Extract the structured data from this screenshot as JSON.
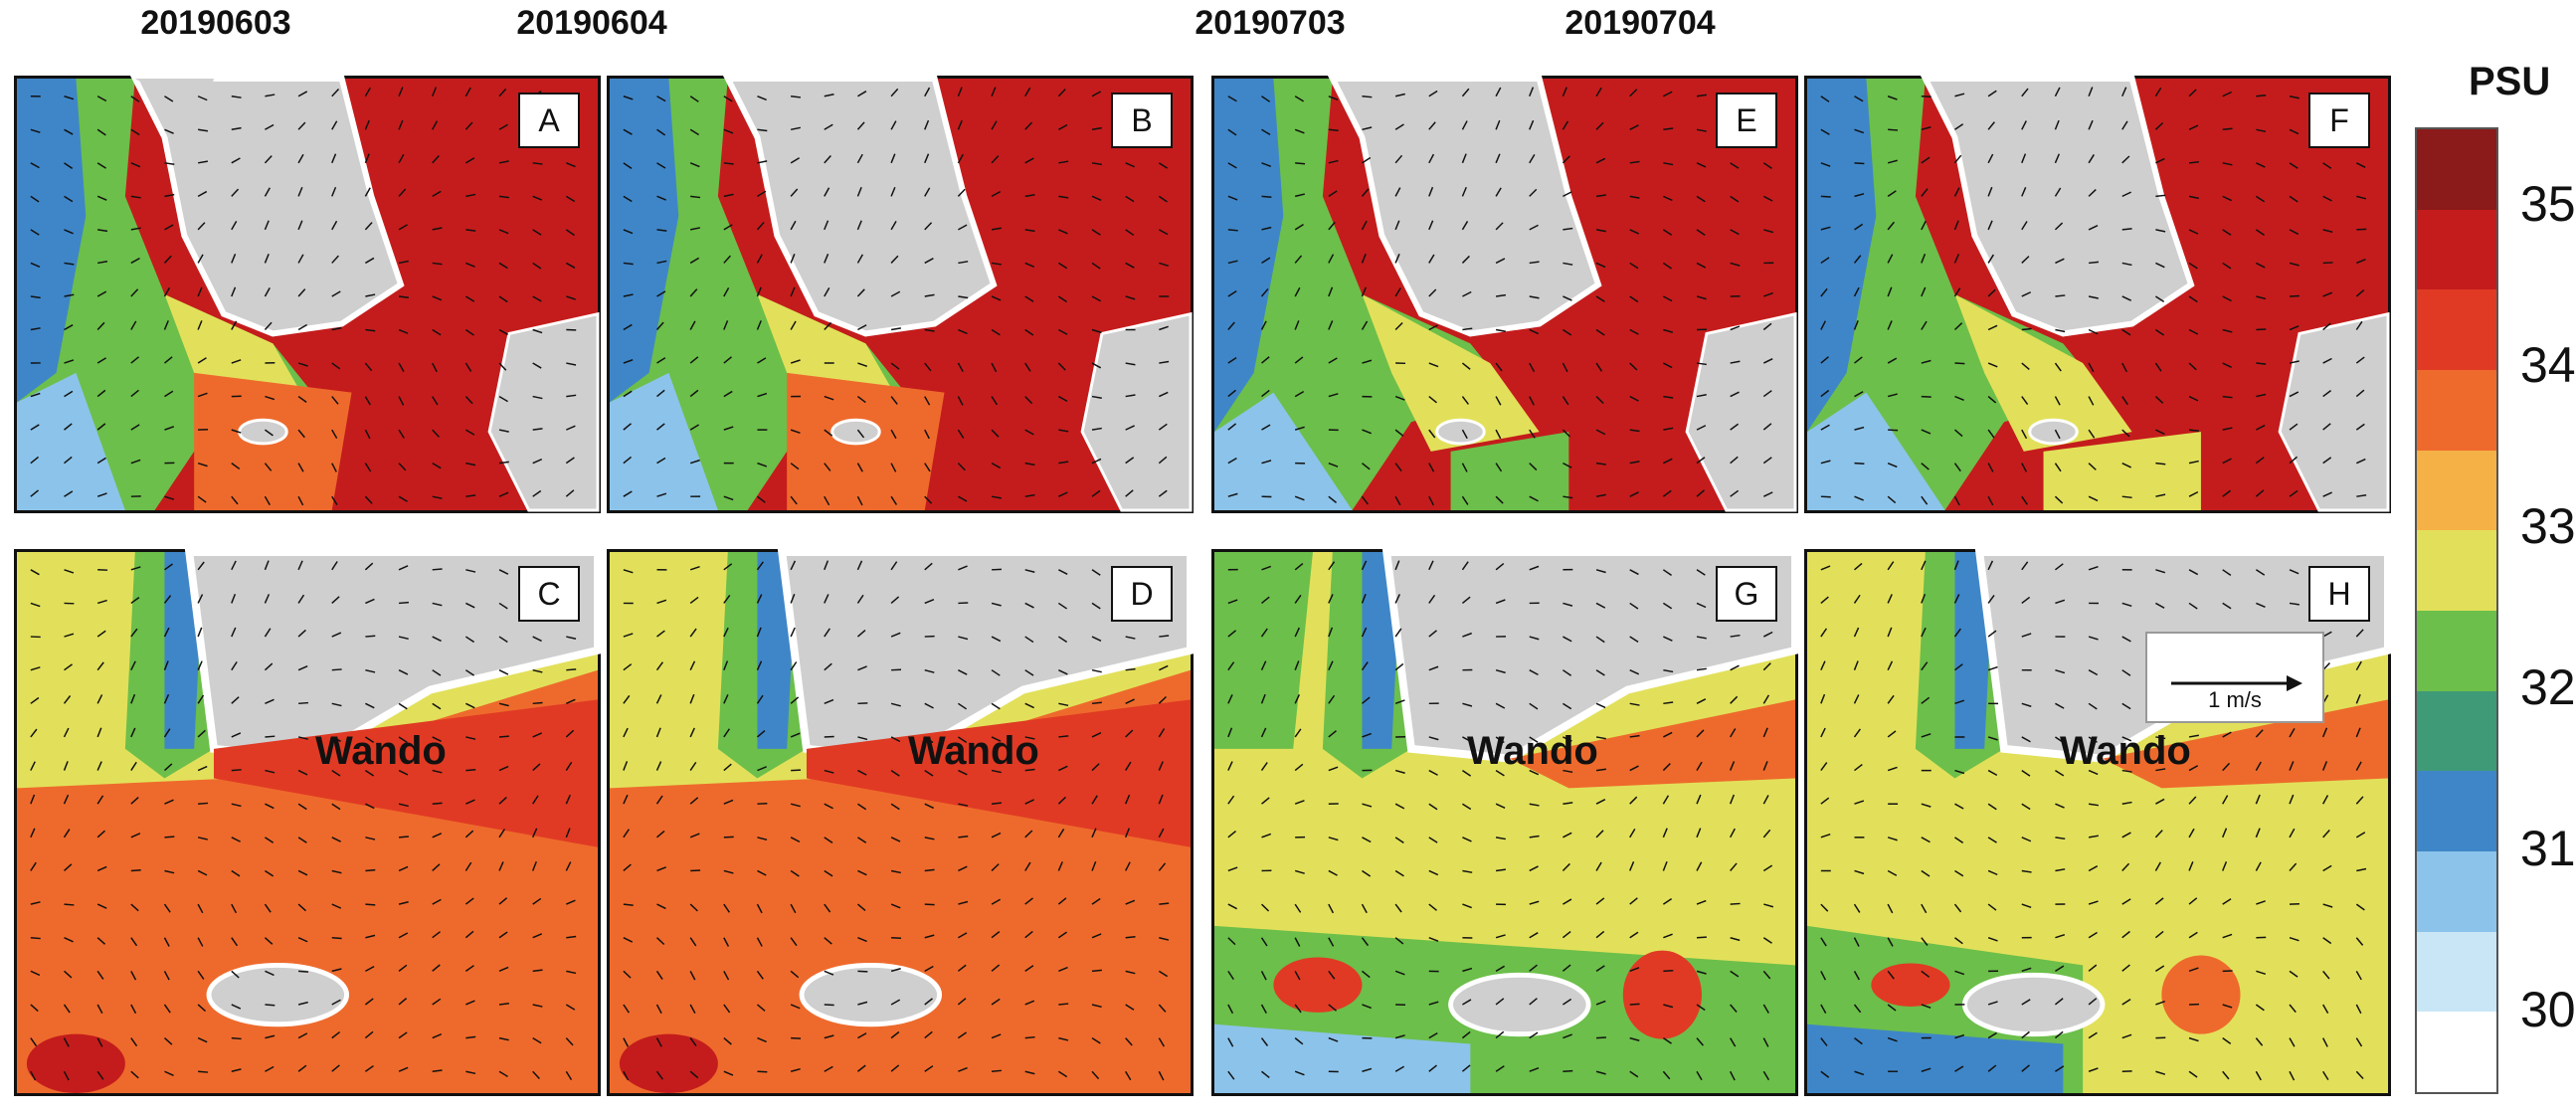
{
  "column_titles": [
    "20190603",
    "20190604",
    "20190703",
    "20190704"
  ],
  "panel_labels": {
    "top": [
      "A",
      "B",
      "E",
      "F"
    ],
    "bottom": [
      "C",
      "D",
      "G",
      "H"
    ]
  },
  "place_label": "Wando",
  "scale_arrow": {
    "label": "1 m/s"
  },
  "colorbar": {
    "title": "PSU",
    "ticks": [
      "35",
      "34",
      "33",
      "32",
      "31",
      "30"
    ],
    "colors": [
      "#8b1a1a",
      "#c41c1c",
      "#e03a24",
      "#ee6a2c",
      "#f5b146",
      "#e2e05a",
      "#6cbf4a",
      "#3f9a78",
      "#3f86c8",
      "#8cc3ea",
      "#c9e6f7",
      "#ffffff"
    ]
  },
  "palette": {
    "land": "#cfcfcf",
    "coast": "#ffffff",
    "arrow": "#111111"
  }
}
